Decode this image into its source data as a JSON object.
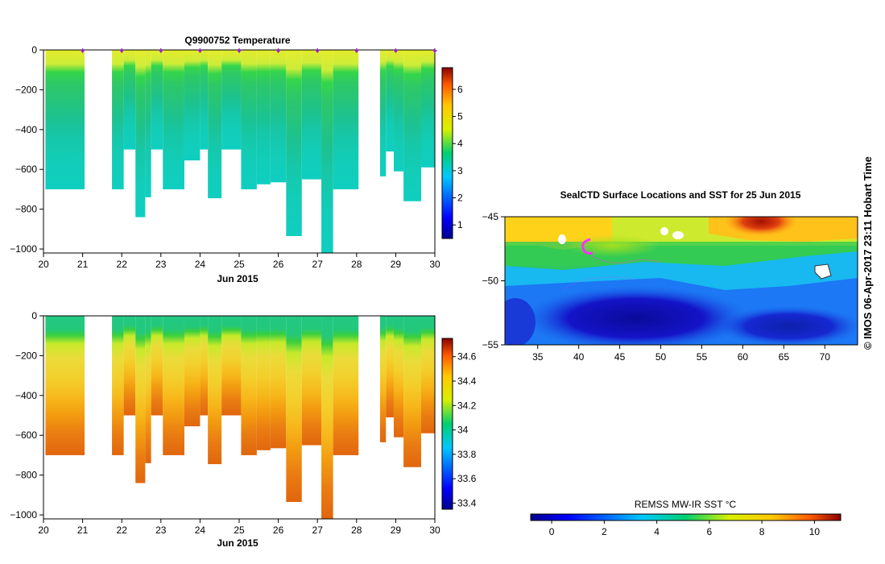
{
  "copyright": "© IMOS 06-Apr-2017 23:11 Hobart Time",
  "chart_data": [
    {
      "type": "heatmap",
      "id": "temperature",
      "title": "Q9900752  Temperature",
      "xlabel": "Jun 2015",
      "ylabel": "",
      "xlim": [
        20,
        30
      ],
      "ylim": [
        -1020,
        0
      ],
      "xticks": [
        20,
        21,
        22,
        23,
        24,
        25,
        26,
        27,
        28,
        29,
        30
      ],
      "yticks": [
        0,
        -200,
        -400,
        -600,
        -800,
        -1000
      ],
      "ytick_labels": [
        "0",
        "−200",
        "−400",
        "−600",
        "−800",
        "−1000"
      ],
      "colorbar": {
        "min": 0.5,
        "max": 6.8,
        "ticks": [
          1,
          2,
          3,
          4,
          5,
          6
        ]
      },
      "profile_markers_x": [
        21,
        22,
        23,
        24,
        25,
        26,
        27,
        28,
        29,
        30
      ],
      "profiles": [
        {
          "x0": 20.05,
          "x1": 21.05,
          "depth": 700
        },
        {
          "x0": 21.75,
          "x1": 22.05,
          "depth": 700
        },
        {
          "x0": 22.05,
          "x1": 22.35,
          "depth": 500
        },
        {
          "x0": 22.35,
          "x1": 22.6,
          "depth": 840
        },
        {
          "x0": 22.6,
          "x1": 22.75,
          "depth": 740
        },
        {
          "x0": 22.75,
          "x1": 23.05,
          "depth": 500
        },
        {
          "x0": 23.05,
          "x1": 23.6,
          "depth": 700
        },
        {
          "x0": 23.6,
          "x1": 24.0,
          "depth": 555
        },
        {
          "x0": 24.0,
          "x1": 24.2,
          "depth": 500
        },
        {
          "x0": 24.2,
          "x1": 24.55,
          "depth": 745
        },
        {
          "x0": 24.55,
          "x1": 25.05,
          "depth": 500
        },
        {
          "x0": 25.05,
          "x1": 25.45,
          "depth": 700
        },
        {
          "x0": 25.45,
          "x1": 25.8,
          "depth": 675
        },
        {
          "x0": 25.8,
          "x1": 26.2,
          "depth": 665
        },
        {
          "x0": 26.2,
          "x1": 26.6,
          "depth": 935
        },
        {
          "x0": 26.6,
          "x1": 27.1,
          "depth": 650
        },
        {
          "x0": 27.1,
          "x1": 27.4,
          "depth": 1020
        },
        {
          "x0": 27.4,
          "x1": 28.05,
          "depth": 700
        },
        {
          "x0": 28.6,
          "x1": 28.75,
          "depth": 635
        },
        {
          "x0": 28.75,
          "x1": 28.95,
          "depth": 510
        },
        {
          "x0": 28.95,
          "x1": 29.2,
          "depth": 610
        },
        {
          "x0": 29.2,
          "x1": 29.65,
          "depth": 760
        },
        {
          "x0": 29.65,
          "x1": 30.05,
          "depth": 590
        }
      ]
    },
    {
      "type": "heatmap",
      "id": "salinity",
      "title": "",
      "xlabel": "Jun 2015",
      "ylabel": "",
      "xlim": [
        20,
        30
      ],
      "ylim": [
        -1020,
        0
      ],
      "xticks": [
        20,
        21,
        22,
        23,
        24,
        25,
        26,
        27,
        28,
        29,
        30
      ],
      "yticks": [
        0,
        -200,
        -400,
        -600,
        -800,
        -1000
      ],
      "ytick_labels": [
        "0",
        "−200",
        "−400",
        "−600",
        "−800",
        "−1000"
      ],
      "colorbar": {
        "min": 33.35,
        "max": 34.75,
        "ticks": [
          33.4,
          33.6,
          33.8,
          34,
          34.2,
          34.4,
          34.6
        ]
      },
      "profiles": [
        {
          "x0": 20.05,
          "x1": 21.05,
          "depth": 700
        },
        {
          "x0": 21.75,
          "x1": 22.05,
          "depth": 700
        },
        {
          "x0": 22.05,
          "x1": 22.35,
          "depth": 500
        },
        {
          "x0": 22.35,
          "x1": 22.6,
          "depth": 840
        },
        {
          "x0": 22.6,
          "x1": 22.75,
          "depth": 740
        },
        {
          "x0": 22.75,
          "x1": 23.05,
          "depth": 500
        },
        {
          "x0": 23.05,
          "x1": 23.6,
          "depth": 700
        },
        {
          "x0": 23.6,
          "x1": 24.0,
          "depth": 555
        },
        {
          "x0": 24.0,
          "x1": 24.2,
          "depth": 500
        },
        {
          "x0": 24.2,
          "x1": 24.55,
          "depth": 745
        },
        {
          "x0": 24.55,
          "x1": 25.05,
          "depth": 500
        },
        {
          "x0": 25.05,
          "x1": 25.45,
          "depth": 700
        },
        {
          "x0": 25.45,
          "x1": 25.8,
          "depth": 675
        },
        {
          "x0": 25.8,
          "x1": 26.2,
          "depth": 665
        },
        {
          "x0": 26.2,
          "x1": 26.6,
          "depth": 935
        },
        {
          "x0": 26.6,
          "x1": 27.1,
          "depth": 650
        },
        {
          "x0": 27.1,
          "x1": 27.4,
          "depth": 1020
        },
        {
          "x0": 27.4,
          "x1": 28.05,
          "depth": 700
        },
        {
          "x0": 28.6,
          "x1": 28.75,
          "depth": 635
        },
        {
          "x0": 28.75,
          "x1": 28.95,
          "depth": 510
        },
        {
          "x0": 28.95,
          "x1": 29.2,
          "depth": 610
        },
        {
          "x0": 29.2,
          "x1": 29.65,
          "depth": 760
        },
        {
          "x0": 29.65,
          "x1": 30.05,
          "depth": 590
        }
      ]
    },
    {
      "type": "heatmap",
      "id": "sst-map",
      "title": "SealCTD Surface Locations and SST for 25 Jun 2015",
      "xlabel": "",
      "ylabel": "",
      "xlim": [
        31,
        74
      ],
      "ylim": [
        -55,
        -45
      ],
      "xticks": [
        35,
        40,
        45,
        50,
        55,
        60,
        65,
        70
      ],
      "yticks": [
        -45,
        -50,
        -55
      ],
      "ytick_labels": [
        "−45",
        "−50",
        "−55"
      ],
      "colorbar": {
        "label": "REMSS MW-IR SST °C",
        "min": -0.8,
        "max": 11,
        "ticks": [
          0,
          2,
          4,
          6,
          8,
          10
        ]
      }
    }
  ]
}
